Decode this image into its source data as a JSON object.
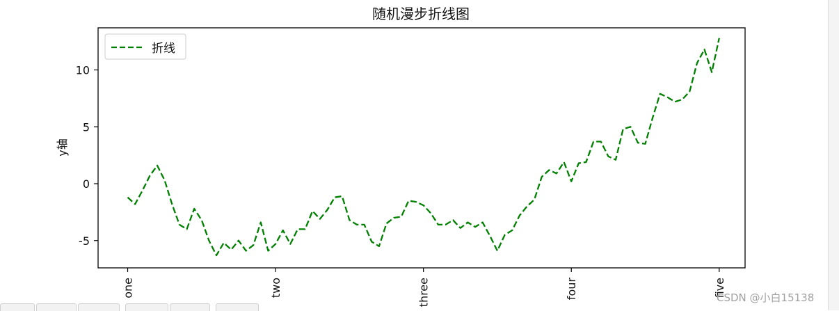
{
  "chart_data": {
    "type": "line",
    "title": "随机漫步折线图",
    "xlabel": "",
    "ylabel": "y轴",
    "x_ticks": [
      {
        "x": 0,
        "label": "one"
      },
      {
        "x": 20,
        "label": "two"
      },
      {
        "x": 40,
        "label": "three"
      },
      {
        "x": 60,
        "label": "four"
      },
      {
        "x": 80,
        "label": "five"
      }
    ],
    "y_ticks": [
      -5,
      0,
      5,
      10
    ],
    "xlim": [
      -4,
      83.5
    ],
    "ylim": [
      -7.4,
      13.7
    ],
    "grid": false,
    "legend": "upper left",
    "series": [
      {
        "name": "折线",
        "color": "#008000",
        "line_style": "dashed",
        "x": [
          0,
          1,
          2,
          3,
          4,
          5,
          6,
          7,
          8,
          9,
          10,
          11,
          12,
          13,
          14,
          15,
          16,
          17,
          18,
          19,
          20,
          21,
          22,
          23,
          24,
          25,
          26,
          27,
          28,
          29,
          30,
          31,
          32,
          33,
          34,
          35,
          36,
          37,
          38,
          39,
          40,
          41,
          42,
          43,
          44,
          45,
          46,
          47,
          48,
          49,
          50,
          51,
          52,
          53,
          54,
          55,
          56,
          57,
          58,
          59,
          60,
          61,
          62,
          63,
          64,
          65,
          66,
          67,
          68,
          69,
          70,
          71,
          72,
          73,
          74,
          75,
          76,
          77,
          78,
          79,
          80
        ],
        "values": [
          -1.2,
          -1.8,
          -0.6,
          0.7,
          1.6,
          0.3,
          -1.8,
          -3.6,
          -4,
          -2.2,
          -3.2,
          -5,
          -6.3,
          -5.2,
          -5.8,
          -5,
          -5.9,
          -5.4,
          -3.4,
          -5.9,
          -5.3,
          -4.1,
          -5.3,
          -4,
          -4,
          -2.4,
          -3.1,
          -2.3,
          -1.2,
          -1.1,
          -3.2,
          -3.6,
          -3.6,
          -5.1,
          -5.5,
          -3.5,
          -3,
          -2.9,
          -1.5,
          -1.6,
          -1.9,
          -2.6,
          -3.6,
          -3.6,
          -3.2,
          -3.9,
          -3.4,
          -3.8,
          -3.4,
          -4.6,
          -5.9,
          -4.5,
          -4.1,
          -2.8,
          -2,
          -1.4,
          0.6,
          1.2,
          0.9,
          1.9,
          0.2,
          1.8,
          1.9,
          3.7,
          3.7,
          2.4,
          2.1,
          4.8,
          5,
          3.6,
          3.5,
          5.8,
          7.9,
          7.6,
          7.2,
          7.4,
          8.1,
          10.6,
          11.8,
          9.8,
          12.8
        ]
      }
    ]
  },
  "watermark": "CSDN @小白15138"
}
